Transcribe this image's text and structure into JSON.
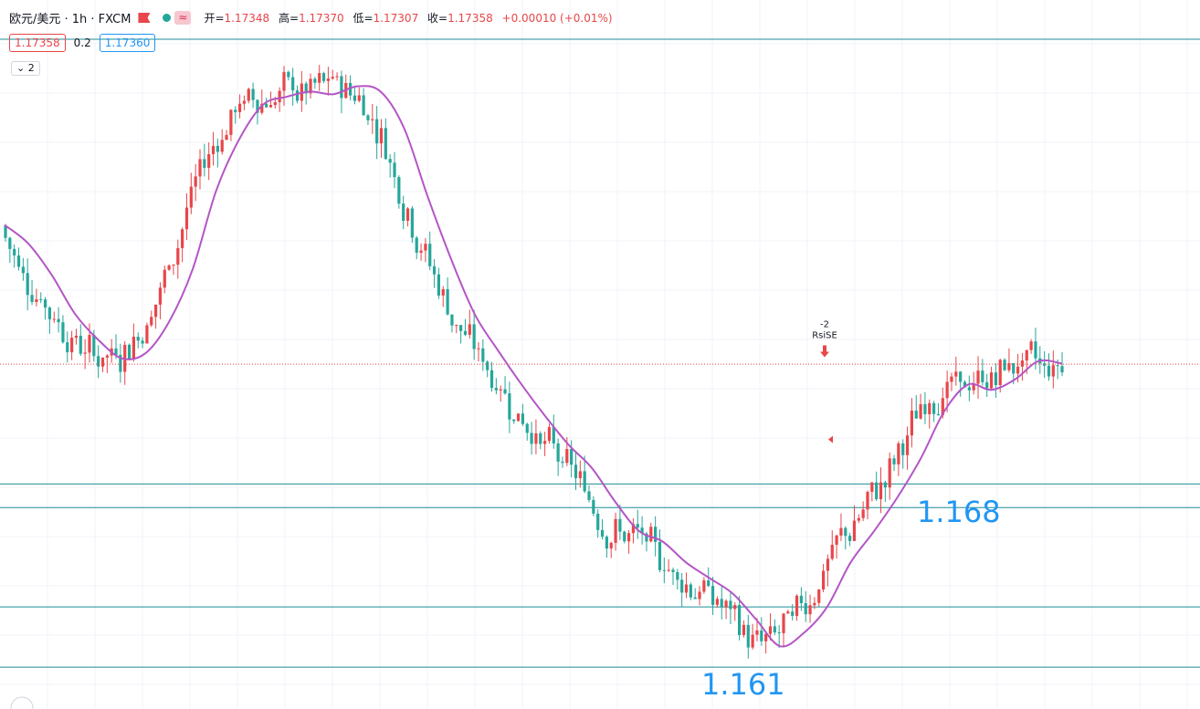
{
  "header": {
    "symbol": "欧元/美元 · 1h · FXCM",
    "ohlc": [
      {
        "k": "开=",
        "v": "1.17348"
      },
      {
        "k": "高=",
        "v": "1.17370"
      },
      {
        "k": "低=",
        "v": "1.17307"
      },
      {
        "k": "收=",
        "v": "1.17358"
      },
      {
        "k": "",
        "v": "+0.00010 (+0.01%)"
      }
    ],
    "wave_glyph": "≈"
  },
  "quote": {
    "bid": "1.17358",
    "spread": "0.2",
    "ask": "1.17360"
  },
  "collapse_label": "2",
  "colors": {
    "up": "#e8464a",
    "down": "#26a69a",
    "ma": "#b455c6",
    "level": "#1e8c96",
    "label": "#2196f3"
  },
  "chart_data": {
    "type": "candlestick",
    "ylim": [
      1.1604,
      1.1875
    ],
    "levels": [
      1.186,
      1.169,
      1.1681,
      1.1643,
      1.162
    ],
    "current_price": 1.17358,
    "level_labels": [
      {
        "text": "1.168",
        "price": 1.1679
      },
      {
        "text": "1.161",
        "price": 1.1613
      }
    ],
    "signal": {
      "text1": "-2",
      "text2": "RsiSE",
      "price": 1.1743
    },
    "ma_values": [
      1.1789,
      1.1782,
      1.177,
      1.1755,
      1.1745,
      1.1738,
      1.174,
      1.1752,
      1.1772,
      1.1802,
      1.1822,
      1.1835,
      1.1838,
      1.184,
      1.1839,
      1.1842,
      1.184,
      1.1826,
      1.18,
      1.1776,
      1.1755,
      1.1741,
      1.1728,
      1.1716,
      1.1705,
      1.1696,
      1.1683,
      1.1672,
      1.1668,
      1.166,
      1.1654,
      1.1648,
      1.1638,
      1.1628,
      1.1633,
      1.1643,
      1.166,
      1.1672,
      1.1685,
      1.17,
      1.1718,
      1.1728,
      1.1726,
      1.173,
      1.1737,
      1.1736
    ],
    "candles_count": 240
  }
}
